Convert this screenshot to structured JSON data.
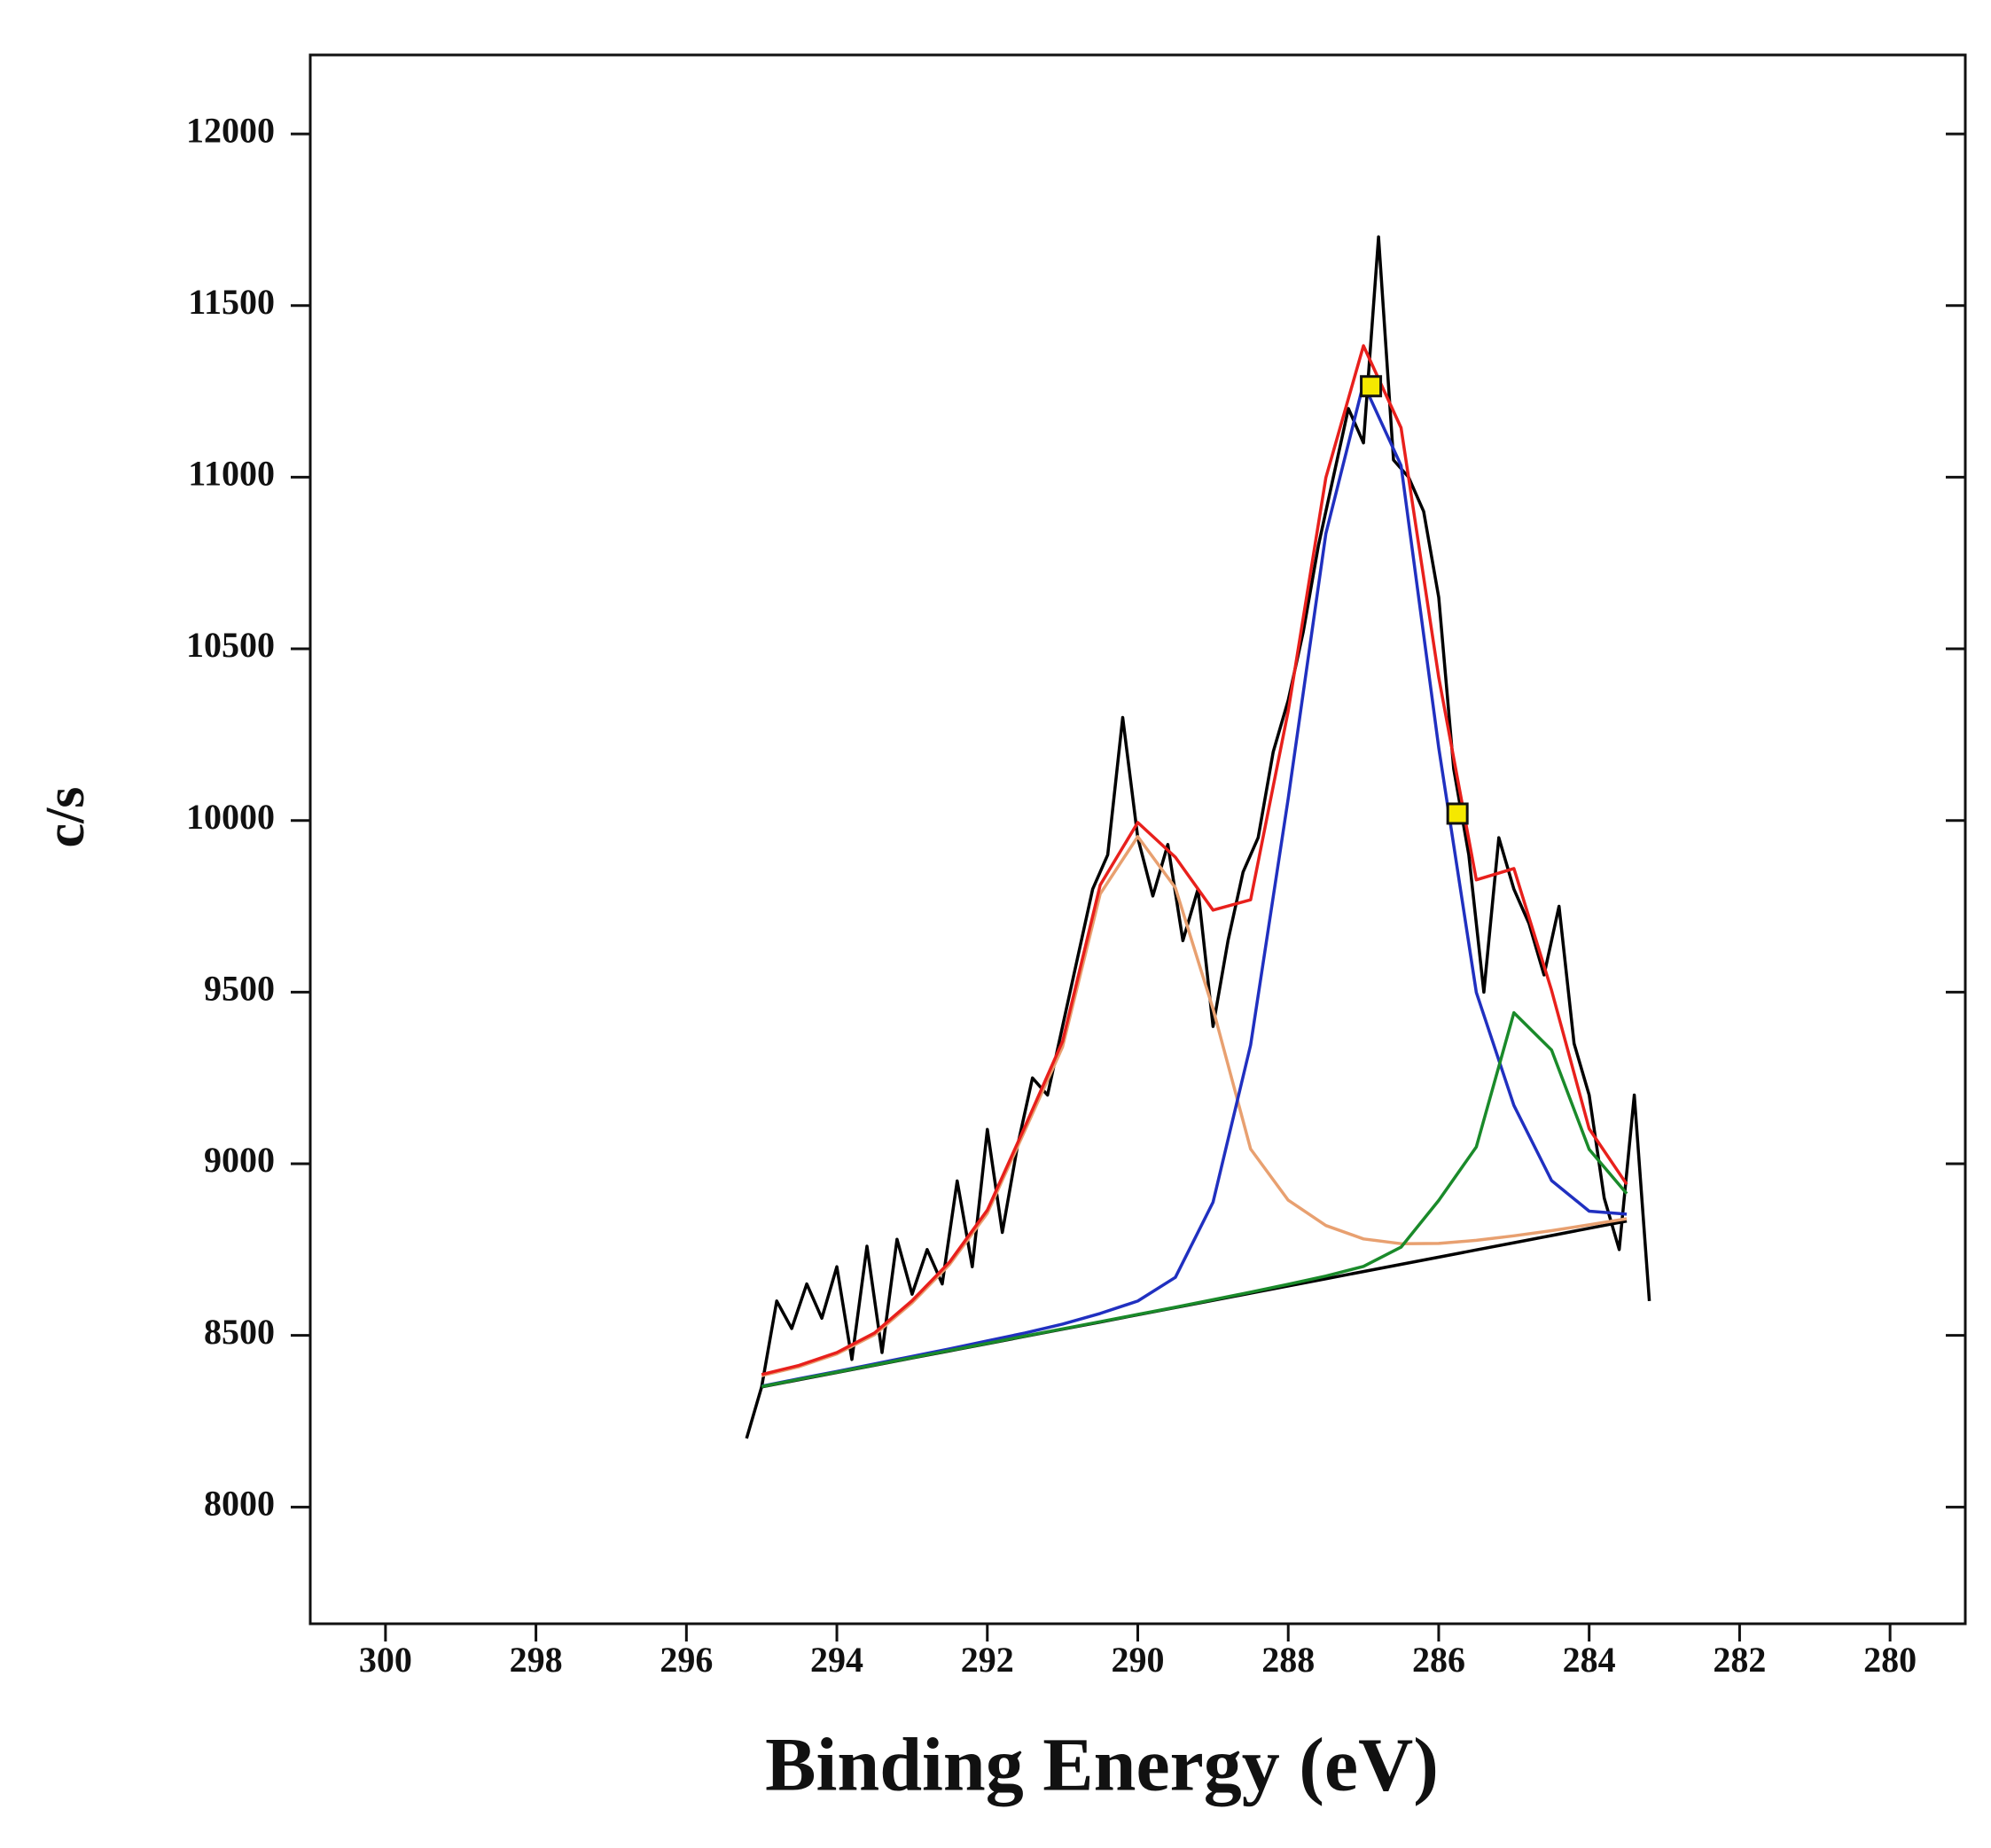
{
  "chart_data": {
    "type": "line",
    "x_label": "Binding Energy (eV)",
    "y_label": "c/s",
    "xlim": [
      301,
      279
    ],
    "ylim": [
      7660,
      12230
    ],
    "xticks": [
      300,
      298,
      296,
      294,
      292,
      290,
      288,
      286,
      284,
      282,
      280
    ],
    "yticks": [
      8000,
      8500,
      9000,
      9500,
      10000,
      10500,
      11000,
      11500,
      12000
    ],
    "series": [
      {
        "color": "#000000",
        "x": [
          295.2,
          295.0,
          294.8,
          294.6,
          294.4,
          294.2,
          294.0,
          293.8,
          293.6,
          293.4,
          293.2,
          293.0,
          292.8,
          292.6,
          292.4,
          292.2,
          292.0,
          291.8,
          291.6,
          291.4,
          291.2,
          291.0,
          290.8,
          290.6,
          290.4,
          290.2,
          290.0,
          289.8,
          289.6,
          289.4,
          289.2,
          289.0,
          288.8,
          288.6,
          288.4,
          288.2,
          288.0,
          287.8,
          287.6,
          287.4,
          287.2,
          287.0,
          286.8,
          286.6,
          286.4,
          286.2,
          286.0,
          285.8,
          285.6,
          285.4,
          285.2,
          285.0,
          284.8,
          284.6,
          284.4,
          284.2,
          284.0,
          283.8,
          283.6,
          283.4,
          283.2
        ],
        "values": [
          8200,
          8350,
          8600,
          8520,
          8650,
          8550,
          8700,
          8430,
          8760,
          8450,
          8780,
          8620,
          8750,
          8650,
          8950,
          8700,
          9100,
          8800,
          9050,
          9250,
          9200,
          9400,
          9600,
          9800,
          9900,
          10300,
          9950,
          9780,
          9930,
          9650,
          9800,
          9400,
          9650,
          9850,
          9950,
          10200,
          10350,
          10550,
          10800,
          11000,
          11200,
          11100,
          11700,
          11050,
          11000,
          10900,
          10650,
          10150,
          9900,
          9500,
          9950,
          9800,
          9700,
          9550,
          9750,
          9350,
          9200,
          8900,
          8750,
          9200,
          8600
        ]
      },
      {
        "color": "#000000",
        "x": [
          295.0,
          294.5,
          294.0,
          293.5,
          293.0,
          292.5,
          292.0,
          291.5,
          291.0,
          290.5,
          290.0,
          289.5,
          289.0,
          288.5,
          288.0,
          287.5,
          287.0,
          286.5,
          286.0,
          285.5,
          285.0,
          284.5,
          284.0,
          283.5
        ],
        "values": [
          8350,
          8371,
          8392,
          8413,
          8434,
          8455,
          8476,
          8497,
          8518,
          8539,
          8560,
          8581,
          8602,
          8623,
          8644,
          8665,
          8686,
          8707,
          8728,
          8749,
          8770,
          8791,
          8812,
          8833
        ]
      },
      {
        "color": "#e8a070",
        "x": [
          295.0,
          294.5,
          294.0,
          293.5,
          293.0,
          292.5,
          292.0,
          291.5,
          291.0,
          290.5,
          290.0,
          289.5,
          289.0,
          288.5,
          288.0,
          287.5,
          287.0,
          286.5,
          286.0,
          285.5,
          285.0,
          284.5,
          284.0,
          283.5
        ],
        "values": [
          8383,
          8409,
          8446,
          8502,
          8595,
          8707,
          8856,
          9097,
          9340,
          9786,
          9953,
          9804,
          9451,
          9043,
          8894,
          8820,
          8781,
          8767,
          8768,
          8777,
          8790,
          8805,
          8822,
          8840
        ]
      },
      {
        "color": "#2030c0",
        "x": [
          295.0,
          294.5,
          294.0,
          293.5,
          293.0,
          292.5,
          292.0,
          291.5,
          291.0,
          290.5,
          290.0,
          289.5,
          289.0,
          288.5,
          288.0,
          287.5,
          287.0,
          286.5,
          286.0,
          285.5,
          285.0,
          284.5,
          284.0,
          283.5
        ],
        "values": [
          8352,
          8374,
          8395,
          8417,
          8439,
          8461,
          8484,
          8507,
          8533,
          8564,
          8600,
          8669,
          8888,
          9346,
          10064,
          10836,
          11273,
          11034,
          10212,
          9499,
          9170,
          8951,
          8862,
          8853
        ]
      },
      {
        "color": "#1a8a2a",
        "x": [
          295.0,
          294.5,
          294.0,
          293.5,
          293.0,
          292.5,
          292.0,
          291.5,
          291.0,
          290.5,
          290.0,
          289.5,
          289.0,
          288.5,
          288.0,
          287.5,
          287.0,
          286.5,
          286.0,
          285.5,
          285.0,
          284.5,
          284.0,
          283.5
        ],
        "values": [
          8351,
          8372,
          8393,
          8414,
          8435,
          8456,
          8477,
          8498,
          8519,
          8540,
          8561,
          8582,
          8604,
          8626,
          8649,
          8673,
          8701,
          8757,
          8893,
          9049,
          9440,
          9331,
          9042,
          8913
        ]
      },
      {
        "color": "#e8201c",
        "x": [
          295.0,
          294.5,
          294.0,
          293.5,
          293.0,
          292.5,
          292.0,
          291.5,
          291.0,
          290.5,
          290.0,
          289.5,
          289.0,
          288.5,
          288.0,
          287.5,
          287.0,
          286.5,
          286.0,
          285.5,
          285.0,
          284.5,
          284.0,
          283.5
        ],
        "values": [
          8386,
          8413,
          8450,
          8507,
          8601,
          8714,
          8865,
          9108,
          9356,
          9812,
          9994,
          9893,
          9739,
          9769,
          10319,
          10999,
          11383,
          11144,
          10417,
          9827,
          9860,
          9505,
          9102,
          8940
        ]
      },
      {
        "color": "#f5e800",
        "marker": "square",
        "x": [
          286.9,
          285.75
        ],
        "values": [
          11265,
          10020
        ]
      }
    ]
  }
}
